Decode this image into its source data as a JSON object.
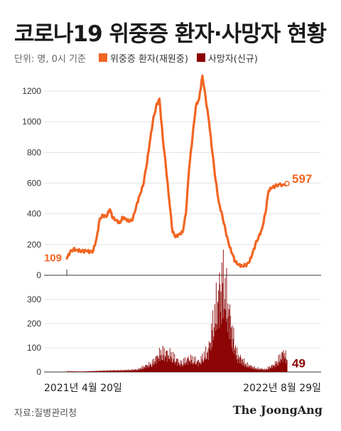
{
  "title": "코로나19 위중증 환자·사망자 현황",
  "unit_note": "단위: 명, 0시 기준",
  "legend": [
    {
      "label": "위중증 환자(재원중)",
      "color": "#f26522"
    },
    {
      "label": "사망자(신규)",
      "color": "#8b0000"
    }
  ],
  "source": "자료:질병관리청",
  "brand": "The JoongAng",
  "chart_data": [
    {
      "type": "line",
      "name": "위중증 환자(재원중)",
      "color": "#f26522",
      "ylim": [
        0,
        1300
      ],
      "yticks": [
        "0",
        "200",
        "400",
        "600",
        "800",
        "1000",
        "1200"
      ],
      "x_days": [
        0,
        7,
        14,
        21,
        28,
        35,
        42,
        49,
        56,
        63,
        70,
        77,
        84,
        91,
        98,
        105,
        112,
        119,
        126,
        133,
        140,
        147,
        154,
        161,
        168,
        175,
        182,
        189,
        196,
        203,
        210,
        217,
        224,
        231,
        238,
        245,
        252,
        259,
        266,
        273,
        280,
        287,
        294,
        301,
        308,
        315,
        322,
        329,
        336,
        343,
        350,
        357,
        364,
        371,
        378,
        385,
        392,
        399,
        406,
        413,
        420,
        427,
        434,
        441,
        448,
        461,
        466
      ],
      "values": [
        109,
        150,
        170,
        165,
        160,
        155,
        160,
        150,
        160,
        240,
        370,
        390,
        380,
        430,
        370,
        360,
        340,
        380,
        360,
        350,
        370,
        450,
        520,
        580,
        700,
        850,
        1000,
        1100,
        1150,
        900,
        700,
        480,
        280,
        250,
        270,
        280,
        400,
        700,
        900,
        1100,
        1150,
        1300,
        1150,
        1000,
        800,
        620,
        470,
        390,
        290,
        200,
        140,
        85,
        70,
        60,
        65,
        80,
        130,
        200,
        250,
        300,
        400,
        550,
        570,
        580,
        590,
        590,
        597
      ],
      "labels": {
        "start": "109",
        "end": "597"
      }
    },
    {
      "type": "bar",
      "name": "사망자(신규)",
      "color": "#8b0000",
      "ylim": [
        0,
        400
      ],
      "yticks": [
        "0",
        "100",
        "200",
        "300"
      ],
      "x_days": [
        0,
        30,
        60,
        90,
        120,
        150,
        180,
        200,
        220,
        240,
        260,
        280,
        300,
        310,
        320,
        330,
        340,
        350,
        360,
        380,
        400,
        420,
        440,
        460,
        466
      ],
      "values": [
        3,
        2,
        4,
        6,
        7,
        10,
        35,
        80,
        70,
        35,
        55,
        40,
        90,
        200,
        300,
        380,
        280,
        160,
        70,
        30,
        15,
        10,
        30,
        80,
        49
      ],
      "labels": {
        "end": "49"
      }
    }
  ],
  "x_axis": {
    "start_label": "2021년 4월 20일",
    "end_label": "2022년 8월 29일"
  }
}
